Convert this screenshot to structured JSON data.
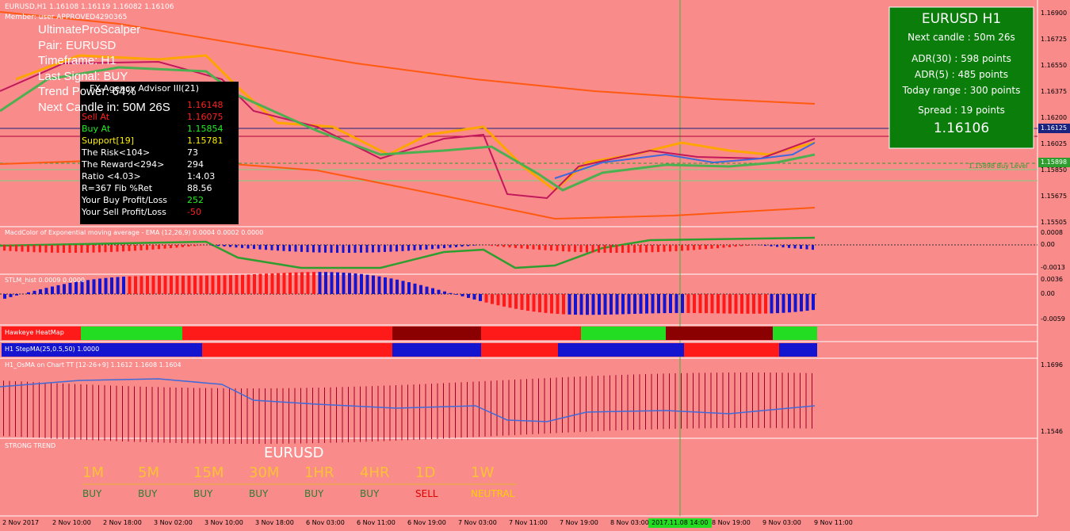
{
  "header": {
    "symbol_line": "EURUSD,H1  1.16108 1.16119 1.16082 1.16106",
    "member": "Member: user  APPROVED4290365"
  },
  "scalper": [
    "UltimateProScalper",
    "Pair: EURUSD",
    "Timeframe: H1",
    "Last Signal: BUY",
    "Trend Power: 64%",
    "Next Candle in: 50M 26S"
  ],
  "advisor": {
    "title": "FX-Agency Advisor III(21)",
    "rows": [
      {
        "value": "1.16148"
      },
      {
        "label": "Sell At",
        "value": "1.16075"
      },
      {
        "label": "Buy At",
        "value": "1.15854"
      },
      {
        "label": "Support[19]",
        "value": "1.15781"
      },
      {
        "label": "The Risk<104>",
        "value": "73"
      },
      {
        "label": "The Reward<294>",
        "value": "294"
      },
      {
        "label": "Ratio <4.03>",
        "value": "1:4.03"
      },
      {
        "label": "R=367 Fib %Ret",
        "value": "88.56"
      },
      {
        "label": "Your Buy Profit/Loss",
        "value": "252"
      },
      {
        "label": "Your Sell Profit/Loss",
        "value": "-50"
      }
    ]
  },
  "info_box": {
    "title": "EURUSD H1",
    "next_candle": "Next candle : 50m 26s",
    "adr30": "ADR(30) : 598 points",
    "adr5": "ADR(5) : 485 points",
    "today_range": "Today range : 300 points",
    "spread": "Spread : 19 points",
    "price": "1.16106"
  },
  "price_axis": {
    "ticks": [
      "1.16900",
      "1.16725",
      "1.16550",
      "1.16375",
      "1.16200",
      "1.16025",
      "1.15850",
      "1.15675",
      "1.15505"
    ],
    "current": "1.16125",
    "buy_level": "1.15898"
  },
  "buy_level_label": "1.15898 Buy Level",
  "macd": {
    "title": "MacdColor of Exponential moving average - EMA (12,26,9) 0.0004 0.0002 0.0000",
    "ticks": [
      "0.0008",
      "0.00",
      "-0.0013"
    ]
  },
  "stlm": {
    "title": "STLM_hist 0.0009 0.0000",
    "ticks": [
      "0.0036",
      "0.00",
      "-0.0059"
    ]
  },
  "heatmap": {
    "title": "Hawkeye HeatMap"
  },
  "stepma": {
    "title": "H1 StepMA(25,0.5,50) 1.0000"
  },
  "osma": {
    "title": "H1_OsMA on Chart TT [12-26+9] 1.1612 1.1608 1.1604",
    "ticks": [
      "1.1696",
      "1.1546"
    ]
  },
  "strong_trend": {
    "title": "STRONG TREND",
    "pair": "EURUSD",
    "timeframes": [
      {
        "tf": "1M",
        "signal": "BUY"
      },
      {
        "tf": "5M",
        "signal": "BUY"
      },
      {
        "tf": "15M",
        "signal": "BUY"
      },
      {
        "tf": "30M",
        "signal": "BUY"
      },
      {
        "tf": "1HR",
        "signal": "BUY"
      },
      {
        "tf": "4HR",
        "signal": "BUY"
      },
      {
        "tf": "1D",
        "signal": "SELL"
      },
      {
        "tf": "1W",
        "signal": "NEUTRAL"
      }
    ]
  },
  "time_axis": [
    "2 Nov 2017",
    "2 Nov 10:00",
    "2 Nov 18:00",
    "3 Nov 02:00",
    "3 Nov 10:00",
    "3 Nov 18:00",
    "6 Nov 03:00",
    "6 Nov 11:00",
    "6 Nov 19:00",
    "7 Nov 03:00",
    "7 Nov 11:00",
    "7 Nov 19:00",
    "8 Nov 03:00",
    "2017.11.08 14:00",
    "8 Nov 19:00",
    "9 Nov 03:00",
    "9 Nov 11:00"
  ]
}
